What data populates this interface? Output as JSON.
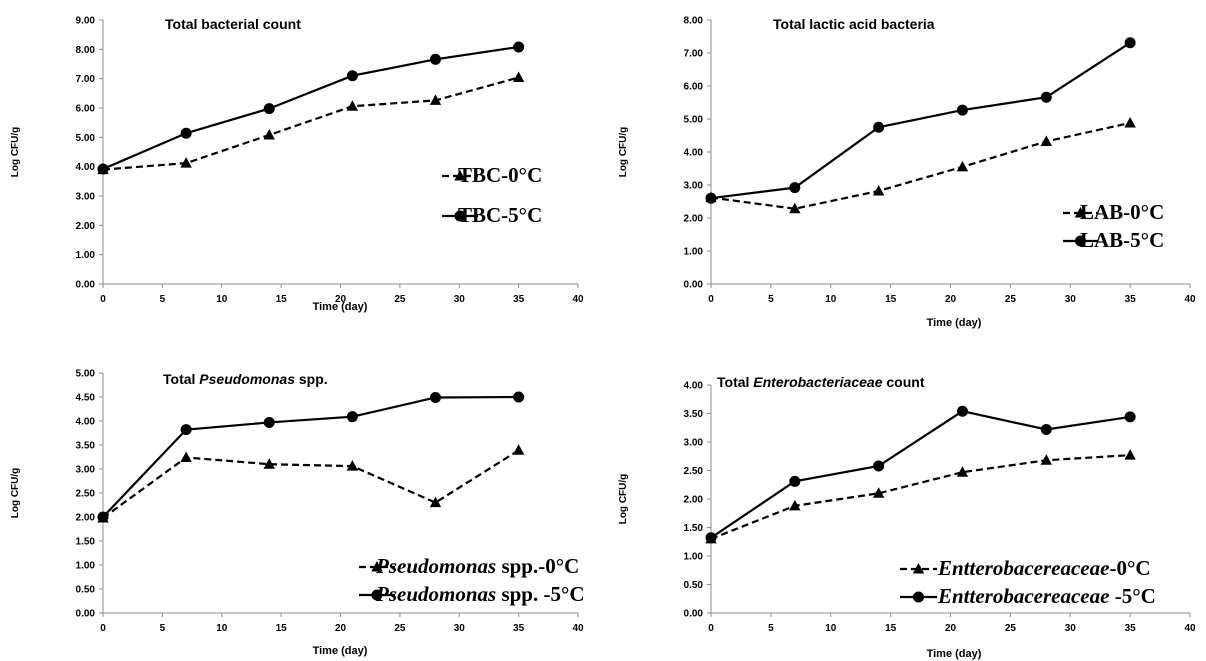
{
  "chart_data": [
    {
      "type": "line",
      "title": "Total bacterial count",
      "title_parts": [
        {
          "text": "Total bacterial count",
          "italic": false
        }
      ],
      "xlabel": "Time (day)",
      "ylabel": "Log CFU/g",
      "xlim": [
        0,
        40
      ],
      "ylim": [
        0,
        9
      ],
      "x_ticks": [
        "0",
        "5",
        "10",
        "15",
        "20",
        "25",
        "30",
        "35",
        "40"
      ],
      "y_ticks": [
        "0.00",
        "1.00",
        "2.00",
        "3.00",
        "4.00",
        "5.00",
        "6.00",
        "7.00",
        "8.00",
        "9.00"
      ],
      "grid": false,
      "legend_position": "right",
      "x": [
        0,
        7,
        14,
        21,
        28,
        35
      ],
      "series": [
        {
          "name": "TBC-0°C",
          "name_parts": [
            {
              "text": "TBC-0°C",
              "italic": false
            }
          ],
          "marker": "triangle",
          "dash": true,
          "values": [
            3.9,
            4.12,
            5.08,
            6.06,
            6.26,
            7.04
          ]
        },
        {
          "name": "TBC-5°C",
          "name_parts": [
            {
              "text": "TBC-5°C",
              "italic": false
            }
          ],
          "marker": "circle",
          "dash": false,
          "values": [
            3.92,
            5.14,
            5.98,
            7.1,
            7.66,
            8.08
          ]
        }
      ]
    },
    {
      "type": "line",
      "title": "Total lactic acid bacteria",
      "title_parts": [
        {
          "text": "Total lactic acid bacteria",
          "italic": false
        }
      ],
      "xlabel": "Time (day)",
      "ylabel": "Log CFU/g",
      "xlim": [
        0,
        40
      ],
      "ylim": [
        0,
        8
      ],
      "x_ticks": [
        "0",
        "5",
        "10",
        "15",
        "20",
        "25",
        "30",
        "35",
        "40"
      ],
      "y_ticks": [
        "0.00",
        "1.00",
        "2.00",
        "3.00",
        "4.00",
        "5.00",
        "6.00",
        "7.00",
        "8.00"
      ],
      "grid": false,
      "legend_position": "bottom-right",
      "x": [
        0,
        7,
        14,
        21,
        28,
        35
      ],
      "series": [
        {
          "name": "LAB-0°C",
          "name_parts": [
            {
              "text": "LAB-0°C",
              "italic": false
            }
          ],
          "marker": "triangle",
          "dash": true,
          "values": [
            2.62,
            2.28,
            2.82,
            3.55,
            4.32,
            4.88
          ]
        },
        {
          "name": "LAB-5°C",
          "name_parts": [
            {
              "text": "LAB-5°C",
              "italic": false
            }
          ],
          "marker": "circle",
          "dash": false,
          "values": [
            2.6,
            2.92,
            4.75,
            5.27,
            5.66,
            7.31
          ]
        }
      ]
    },
    {
      "type": "line",
      "title": "Total Pseudomonas spp.",
      "title_parts": [
        {
          "text": "Total ",
          "italic": false
        },
        {
          "text": "Pseudomonas",
          "italic": true
        },
        {
          "text": " spp.",
          "italic": false
        }
      ],
      "xlabel": "Time (day)",
      "ylabel": "Log CFU/g",
      "xlim": [
        0,
        40
      ],
      "ylim": [
        0,
        5
      ],
      "x_ticks": [
        "0",
        "5",
        "10",
        "15",
        "20",
        "25",
        "30",
        "35",
        "40"
      ],
      "y_ticks": [
        "0.00",
        "0.50",
        "1.00",
        "1.50",
        "2.00",
        "2.50",
        "3.00",
        "3.50",
        "4.00",
        "4.50",
        "5.00"
      ],
      "grid": false,
      "legend_position": "bottom-right",
      "x": [
        0,
        7,
        14,
        21,
        28,
        35
      ],
      "series": [
        {
          "name": "Pseudomonas spp.-0°C",
          "name_parts": [
            {
              "text": "Pseudomonas",
              "italic": true
            },
            {
              "text": " spp.-0°C",
              "italic": false
            }
          ],
          "marker": "triangle",
          "dash": true,
          "values": [
            1.98,
            3.24,
            3.1,
            3.06,
            2.3,
            3.39
          ]
        },
        {
          "name": "Pseudomonas spp. -5°C",
          "name_parts": [
            {
              "text": "Pseudomonas",
              "italic": true
            },
            {
              "text": " spp. -5°C",
              "italic": false
            }
          ],
          "marker": "circle",
          "dash": false,
          "values": [
            2.0,
            3.82,
            3.97,
            4.09,
            4.49,
            4.5
          ]
        }
      ]
    },
    {
      "type": "line",
      "title": "Total Enterobacteriaceae count",
      "title_parts": [
        {
          "text": "Total ",
          "italic": false
        },
        {
          "text": "Enterobacteriaceae",
          "italic": true
        },
        {
          "text": " count",
          "italic": false
        }
      ],
      "xlabel": "Time (day)",
      "ylabel": "Log CFU/g",
      "xlim": [
        0,
        40
      ],
      "ylim": [
        0,
        4
      ],
      "x_ticks": [
        "0",
        "5",
        "10",
        "15",
        "20",
        "25",
        "30",
        "35",
        "40"
      ],
      "y_ticks": [
        "0.00",
        "0.50",
        "1.00",
        "1.50",
        "2.00",
        "2.50",
        "3.00",
        "3.50",
        "4.00"
      ],
      "grid": false,
      "legend_position": "bottom-right",
      "x": [
        0,
        7,
        14,
        21,
        28,
        35
      ],
      "series": [
        {
          "name": "Entterobacereaceae-0°C",
          "name_parts": [
            {
              "text": "Entterobacereaceae",
              "italic": true
            },
            {
              "text": "-0°C",
              "italic": false
            }
          ],
          "marker": "triangle",
          "dash": true,
          "values": [
            1.3,
            1.88,
            2.1,
            2.47,
            2.68,
            2.77
          ]
        },
        {
          "name": "Entterobacereaceae -5°C",
          "name_parts": [
            {
              "text": "Entterobacereaceae",
              "italic": true
            },
            {
              "text": " -5°C",
              "italic": false
            }
          ],
          "marker": "circle",
          "dash": false,
          "values": [
            1.32,
            2.31,
            2.58,
            3.54,
            3.22,
            3.44
          ]
        }
      ]
    }
  ]
}
